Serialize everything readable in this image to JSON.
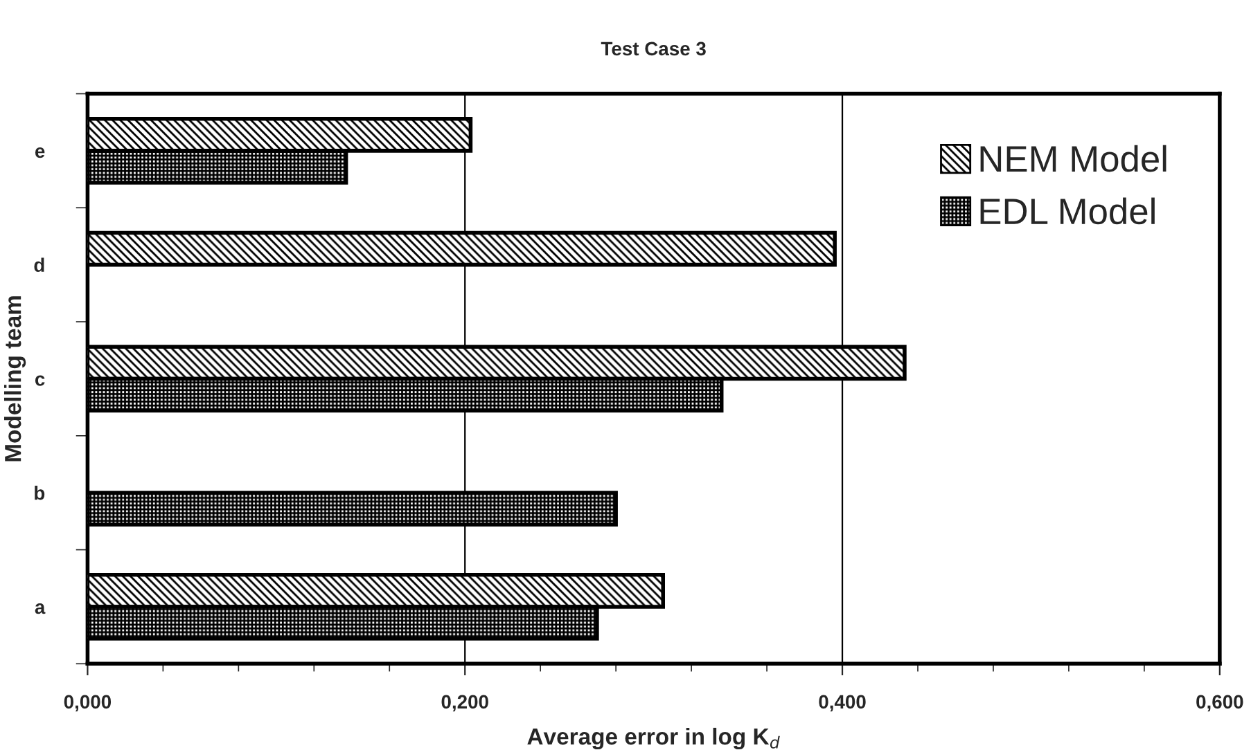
{
  "chart_data": {
    "type": "bar",
    "orientation": "horizontal",
    "title": "Test Case 3",
    "xlabel": "Average error in log K$_{d}$",
    "ylabel": "Modelling team",
    "categories": [
      "e",
      "d",
      "c",
      "b",
      "a"
    ],
    "series": [
      {
        "name": "NEM Model",
        "color": "#000000",
        "values": [
          0.203,
          0.396,
          0.433,
          null,
          0.305
        ]
      },
      {
        "name": "EDL Model",
        "color": "#000000",
        "values": [
          0.137,
          null,
          0.336,
          0.28,
          0.27
        ]
      }
    ],
    "xlim": [
      0,
      0.6
    ],
    "xticks": [
      {
        "value": 0,
        "label": "0,000"
      },
      {
        "value": 0.2,
        "label": "0,200"
      },
      {
        "value": 0.4,
        "label": "0,400"
      },
      {
        "value": 0.6,
        "label": "0,600"
      }
    ],
    "grid": "x",
    "legend": "top right"
  }
}
